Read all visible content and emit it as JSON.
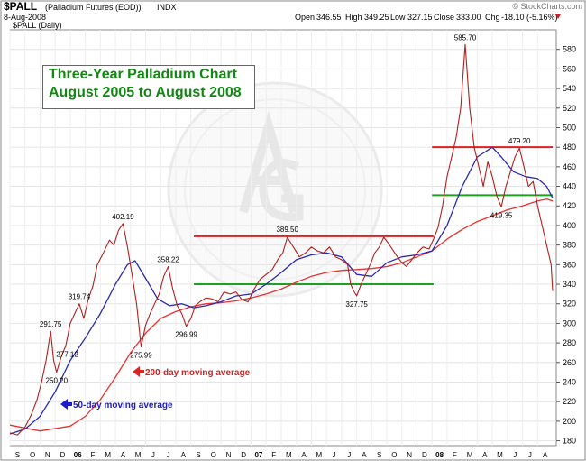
{
  "header": {
    "symbol": "$PALL",
    "name": "(Palladium Futures (EOD))",
    "exchange": "INDX",
    "date": "8-Aug-2008",
    "subtitle": "$PALL (Daily)",
    "open_label": "Open",
    "open_value": "346.55",
    "high_label": "High",
    "high_value": "349.25",
    "low_label": "Low",
    "low_value": "327.15",
    "close_label": "Close",
    "close_value": "333.00",
    "chg_label": "Chg",
    "chg_value": "-18.10 (-5.16%)",
    "watermark": "© StockCharts.com"
  },
  "annotation": {
    "line1": "Three-Year Palladium Chart",
    "line2": "August 2005 to August 2008"
  },
  "legend": {
    "ma200": "200-day moving average",
    "ma50": "50-day moving average"
  },
  "colors": {
    "price": "#b21f1f",
    "ma50": "#2a2ab0",
    "ma200": "#e83232",
    "resistance": "#e02020",
    "support": "#20a020",
    "title_text": "#118811"
  },
  "chart_data": {
    "type": "line",
    "ylim": [
      175,
      600
    ],
    "yticks": [
      180,
      200,
      220,
      240,
      260,
      280,
      300,
      320,
      340,
      360,
      380,
      400,
      420,
      440,
      460,
      480,
      500,
      520,
      540,
      560,
      580
    ],
    "x_labels": [
      "S",
      "O",
      "N",
      "D",
      "06",
      "F",
      "M",
      "A",
      "M",
      "J",
      "J",
      "A",
      "S",
      "O",
      "N",
      "D",
      "07",
      "F",
      "M",
      "A",
      "M",
      "J",
      "J",
      "A",
      "S",
      "O",
      "N",
      "D",
      "08",
      "F",
      "M",
      "A",
      "M",
      "J",
      "J",
      "A"
    ],
    "x_start": 0,
    "x_end": 36,
    "series": [
      {
        "key": "price",
        "values": [
          [
            0,
            188
          ],
          [
            0.5,
            186
          ],
          [
            1,
            194
          ],
          [
            1.4,
            206
          ],
          [
            1.8,
            222
          ],
          [
            2.1,
            240
          ],
          [
            2.4,
            262
          ],
          [
            2.7,
            292
          ],
          [
            2.9,
            262
          ],
          [
            3.1,
            250
          ],
          [
            3.4,
            266
          ],
          [
            3.7,
            277
          ],
          [
            4.0,
            300
          ],
          [
            4.3,
            310
          ],
          [
            4.6,
            320
          ],
          [
            4.9,
            305
          ],
          [
            5.2,
            325
          ],
          [
            5.5,
            338
          ],
          [
            5.8,
            360
          ],
          [
            6.2,
            372
          ],
          [
            6.6,
            385
          ],
          [
            6.9,
            380
          ],
          [
            7.2,
            395
          ],
          [
            7.5,
            402
          ],
          [
            7.8,
            378
          ],
          [
            8.1,
            350
          ],
          [
            8.4,
            320
          ],
          [
            8.7,
            276
          ],
          [
            9.0,
            298
          ],
          [
            9.3,
            310
          ],
          [
            9.6,
            320
          ],
          [
            9.9,
            330
          ],
          [
            10.2,
            348
          ],
          [
            10.5,
            358
          ],
          [
            10.8,
            335
          ],
          [
            11.1,
            318
          ],
          [
            11.4,
            310
          ],
          [
            11.7,
            297
          ],
          [
            12.0,
            305
          ],
          [
            12.3,
            318
          ],
          [
            12.6,
            322
          ],
          [
            13.0,
            326
          ],
          [
            13.4,
            325
          ],
          [
            13.8,
            322
          ],
          [
            14.2,
            332
          ],
          [
            14.6,
            330
          ],
          [
            15.0,
            332
          ],
          [
            15.4,
            324
          ],
          [
            15.8,
            322
          ],
          [
            16.2,
            335
          ],
          [
            16.6,
            345
          ],
          [
            17.0,
            350
          ],
          [
            17.4,
            355
          ],
          [
            17.8,
            366
          ],
          [
            18.1,
            372
          ],
          [
            18.4,
            388
          ],
          [
            18.8,
            378
          ],
          [
            19.2,
            368
          ],
          [
            19.6,
            372
          ],
          [
            20.0,
            378
          ],
          [
            20.4,
            374
          ],
          [
            20.8,
            372
          ],
          [
            21.2,
            378
          ],
          [
            21.6,
            368
          ],
          [
            22.0,
            365
          ],
          [
            22.4,
            360
          ],
          [
            22.6,
            340
          ],
          [
            22.8,
            333
          ],
          [
            23.0,
            328
          ],
          [
            23.3,
            340
          ],
          [
            23.6,
            350
          ],
          [
            23.9,
            360
          ],
          [
            24.2,
            372
          ],
          [
            24.5,
            378
          ],
          [
            24.8,
            388
          ],
          [
            25.1,
            382
          ],
          [
            25.4,
            375
          ],
          [
            25.7,
            368
          ],
          [
            26.0,
            362
          ],
          [
            26.3,
            358
          ],
          [
            26.6,
            364
          ],
          [
            27.0,
            372
          ],
          [
            27.4,
            378
          ],
          [
            27.8,
            376
          ],
          [
            28.1,
            386
          ],
          [
            28.4,
            398
          ],
          [
            28.7,
            420
          ],
          [
            29.0,
            450
          ],
          [
            29.3,
            470
          ],
          [
            29.6,
            490
          ],
          [
            29.9,
            520
          ],
          [
            30.2,
            585
          ],
          [
            30.5,
            520
          ],
          [
            30.8,
            480
          ],
          [
            31.1,
            460
          ],
          [
            31.4,
            440
          ],
          [
            31.7,
            465
          ],
          [
            32.0,
            450
          ],
          [
            32.3,
            430
          ],
          [
            32.6,
            419
          ],
          [
            32.9,
            440
          ],
          [
            33.2,
            455
          ],
          [
            33.5,
            470
          ],
          [
            33.8,
            479
          ],
          [
            34.1,
            460
          ],
          [
            34.4,
            440
          ],
          [
            34.7,
            445
          ],
          [
            35.0,
            420
          ],
          [
            35.3,
            400
          ],
          [
            35.6,
            380
          ],
          [
            35.9,
            360
          ],
          [
            36.0,
            333
          ]
        ]
      },
      {
        "key": "ma50",
        "values": [
          [
            0,
            187
          ],
          [
            1,
            192
          ],
          [
            2,
            205
          ],
          [
            3,
            230
          ],
          [
            4,
            262
          ],
          [
            5,
            285
          ],
          [
            6,
            310
          ],
          [
            7,
            340
          ],
          [
            7.8,
            360
          ],
          [
            8.3,
            364
          ],
          [
            9.0,
            346
          ],
          [
            9.8,
            325
          ],
          [
            10.6,
            318
          ],
          [
            11.4,
            320
          ],
          [
            12.2,
            316
          ],
          [
            13.0,
            318
          ],
          [
            14.0,
            322
          ],
          [
            15.0,
            328
          ],
          [
            16.0,
            330
          ],
          [
            17.0,
            340
          ],
          [
            18.0,
            352
          ],
          [
            19.0,
            365
          ],
          [
            20.0,
            370
          ],
          [
            21.0,
            372
          ],
          [
            22.0,
            368
          ],
          [
            23.0,
            350
          ],
          [
            24.0,
            348
          ],
          [
            25.0,
            362
          ],
          [
            26.0,
            368
          ],
          [
            27.0,
            370
          ],
          [
            28.0,
            374
          ],
          [
            29.0,
            400
          ],
          [
            30.0,
            440
          ],
          [
            31.0,
            470
          ],
          [
            32.0,
            480
          ],
          [
            32.6,
            470
          ],
          [
            33.4,
            455
          ],
          [
            34.2,
            450
          ],
          [
            35.0,
            448
          ],
          [
            35.6,
            440
          ],
          [
            36.0,
            428
          ]
        ]
      },
      {
        "key": "ma200",
        "values": [
          [
            0,
            196
          ],
          [
            2,
            190
          ],
          [
            4,
            195
          ],
          [
            5,
            205
          ],
          [
            6,
            222
          ],
          [
            7,
            245
          ],
          [
            8,
            270
          ],
          [
            9,
            290
          ],
          [
            10,
            305
          ],
          [
            11,
            312
          ],
          [
            12,
            317
          ],
          [
            13,
            320
          ],
          [
            14,
            321
          ],
          [
            15,
            323
          ],
          [
            16,
            326
          ],
          [
            17,
            330
          ],
          [
            18,
            335
          ],
          [
            19,
            342
          ],
          [
            20,
            348
          ],
          [
            21,
            352
          ],
          [
            22,
            354
          ],
          [
            23,
            355
          ],
          [
            24,
            356
          ],
          [
            25,
            358
          ],
          [
            26,
            362
          ],
          [
            27,
            368
          ],
          [
            28,
            374
          ],
          [
            29,
            386
          ],
          [
            30,
            396
          ],
          [
            31,
            404
          ],
          [
            32,
            410
          ],
          [
            33,
            416
          ],
          [
            34,
            420
          ],
          [
            35,
            425
          ],
          [
            35.6,
            427
          ],
          [
            36,
            425
          ]
        ]
      }
    ],
    "levels": [
      {
        "kind": "resistance",
        "y": 389,
        "x0": 12.2,
        "x1": 28.1
      },
      {
        "kind": "support",
        "y": 340,
        "x0": 12.2,
        "x1": 28.1
      },
      {
        "kind": "resistance",
        "y": 480,
        "x0": 28.0,
        "x1": 36.0
      },
      {
        "kind": "support",
        "y": 431,
        "x0": 28.0,
        "x1": 36.0
      }
    ],
    "data_labels": [
      {
        "x": 2.7,
        "y": 292,
        "text": "291.75",
        "pos": "above"
      },
      {
        "x": 3.1,
        "y": 250,
        "text": "250.20",
        "pos": "below"
      },
      {
        "x": 3.8,
        "y": 277,
        "text": "277.12",
        "pos": "below"
      },
      {
        "x": 4.6,
        "y": 320,
        "text": "319.74",
        "pos": "above"
      },
      {
        "x": 7.5,
        "y": 402,
        "text": "402.19",
        "pos": "above"
      },
      {
        "x": 8.7,
        "y": 276,
        "text": "275.99",
        "pos": "below"
      },
      {
        "x": 10.5,
        "y": 358,
        "text": "358.22",
        "pos": "above"
      },
      {
        "x": 11.7,
        "y": 297,
        "text": "296.99",
        "pos": "below"
      },
      {
        "x": 18.4,
        "y": 389,
        "text": "389.50",
        "pos": "above"
      },
      {
        "x": 23.0,
        "y": 328,
        "text": "327.75",
        "pos": "below"
      },
      {
        "x": 30.2,
        "y": 585,
        "text": "585.70",
        "pos": "above"
      },
      {
        "x": 32.6,
        "y": 419,
        "text": "419.35",
        "pos": "below"
      },
      {
        "x": 33.8,
        "y": 479,
        "text": "479.20",
        "pos": "above"
      }
    ]
  }
}
